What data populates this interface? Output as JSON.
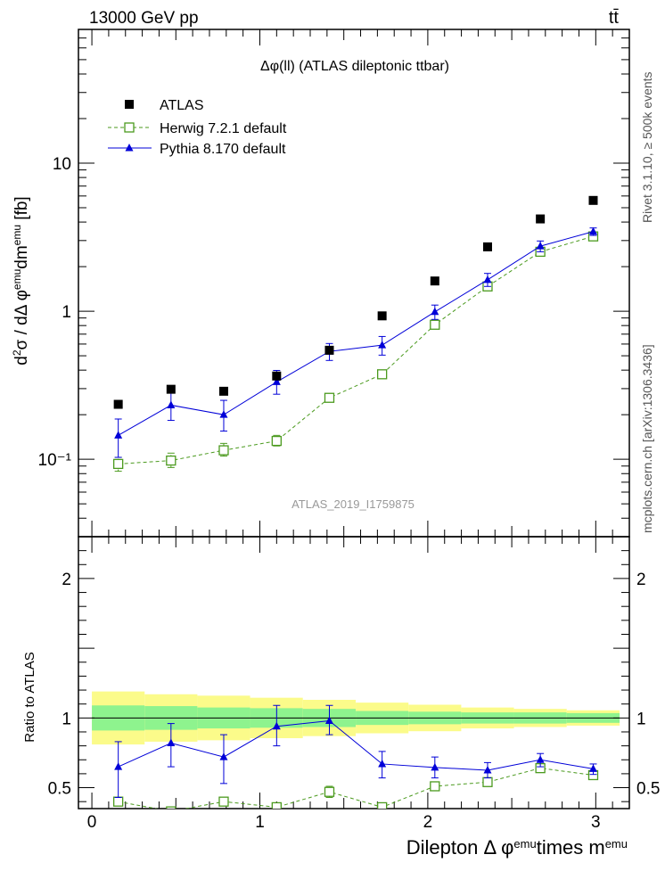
{
  "header": {
    "energy_label": "13000 GeV pp",
    "process_label": "tt̄"
  },
  "side_labels": {
    "rivet": "Rivet 3.1.10, ≥ 500k events",
    "mcplots": "mcplots.cern.ch [arXiv:1306.3436]"
  },
  "chart_data": [
    {
      "type": "scatter",
      "panel": "main",
      "title": "Δφ(ll) (ATLAS dileptonic ttbar)",
      "analysis_label": "ATLAS_2019_I1759875",
      "ylabel": "d²σ / dΔ φ^emu dm^emu [fb]",
      "xlabel": "",
      "yscale": "log",
      "xlim": [
        -0.08,
        3.2
      ],
      "ylim": [
        0.03,
        80
      ],
      "y_ticks": [
        {
          "value": 0.1,
          "label": "10⁻¹"
        },
        {
          "value": 1,
          "label": "1"
        },
        {
          "value": 10,
          "label": "10"
        }
      ],
      "x": [
        0.157,
        0.471,
        0.785,
        1.1,
        1.414,
        1.728,
        2.042,
        2.356,
        2.67,
        2.985
      ],
      "series": [
        {
          "name": "ATLAS",
          "color": "#000000",
          "marker": "filled-square",
          "values": [
            0.235,
            0.297,
            0.288,
            0.365,
            0.545,
            0.93,
            1.6,
            2.72,
            4.2,
            5.6
          ]
        },
        {
          "name": "Herwig 7.2.1 default",
          "color": "#4b9a1e",
          "marker": "open-square",
          "line": "dashed",
          "values": [
            0.093,
            0.098,
            0.115,
            0.133,
            0.26,
            0.375,
            0.81,
            1.47,
            2.52,
            3.2
          ],
          "err_low": [
            0.083,
            0.088,
            0.105,
            0.123,
            0.25,
            0.365,
            0.77,
            1.4,
            2.42,
            3.08
          ],
          "err_high": [
            0.103,
            0.11,
            0.128,
            0.145,
            0.272,
            0.39,
            0.86,
            1.55,
            2.65,
            3.34
          ]
        },
        {
          "name": "Pythia 8.170 default",
          "color": "#0000d8",
          "marker": "filled-triangle",
          "line": "solid",
          "values": [
            0.145,
            0.232,
            0.2,
            0.333,
            0.535,
            0.59,
            0.99,
            1.63,
            2.75,
            3.45
          ],
          "err_low": [
            0.103,
            0.183,
            0.155,
            0.275,
            0.465,
            0.505,
            0.88,
            1.47,
            2.52,
            3.25
          ],
          "err_high": [
            0.187,
            0.285,
            0.25,
            0.398,
            0.605,
            0.675,
            1.1,
            1.8,
            2.98,
            3.65
          ]
        }
      ],
      "legend_position": "top-left"
    },
    {
      "type": "line",
      "panel": "ratio",
      "ylabel": "Ratio to ATLAS",
      "xlabel": "Dilepton Δ φ^emu times m^emu",
      "xlim": [
        -0.08,
        3.2
      ],
      "ylim": [
        0.35,
        2.3
      ],
      "x_ticks": [
        0,
        1,
        2,
        3
      ],
      "y_ticks": [
        0.5,
        1,
        2
      ],
      "band_edges": [
        0,
        0.314,
        0.628,
        0.942,
        1.256,
        1.571,
        1.885,
        2.199,
        2.513,
        2.827,
        3.142
      ],
      "band_inner_low": [
        0.91,
        0.915,
        0.925,
        0.93,
        0.935,
        0.95,
        0.955,
        0.96,
        0.96,
        0.965
      ],
      "band_inner_high": [
        1.09,
        1.085,
        1.075,
        1.07,
        1.065,
        1.05,
        1.045,
        1.04,
        1.04,
        1.035
      ],
      "band_outer_low": [
        0.81,
        0.83,
        0.84,
        0.855,
        0.87,
        0.89,
        0.905,
        0.925,
        0.935,
        0.945
      ],
      "band_outer_high": [
        1.19,
        1.17,
        1.16,
        1.145,
        1.13,
        1.11,
        1.095,
        1.075,
        1.065,
        1.055
      ],
      "band_colors": {
        "inner": "#8ef38e",
        "outer": "#fbfb8a"
      },
      "x": [
        0.157,
        0.471,
        0.785,
        1.1,
        1.414,
        1.728,
        2.042,
        2.356,
        2.67,
        2.985
      ],
      "series": [
        {
          "name": "Herwig 7.2.1 default",
          "color": "#4b9a1e",
          "line": "dashed",
          "values": [
            0.4,
            0.33,
            0.4,
            0.36,
            0.47,
            0.36,
            0.51,
            0.54,
            0.64,
            0.59
          ],
          "err_low": [
            null,
            null,
            null,
            null,
            0.43,
            0.345,
            0.48,
            0.515,
            0.615,
            0.565
          ],
          "err_high": [
            null,
            null,
            null,
            null,
            0.51,
            0.375,
            0.54,
            0.565,
            0.665,
            0.615
          ]
        },
        {
          "name": "Pythia 8.170 default",
          "color": "#0000d8",
          "line": "solid",
          "values": [
            0.65,
            0.82,
            0.72,
            0.94,
            0.98,
            0.67,
            0.645,
            0.625,
            0.7,
            0.635
          ],
          "err_low": [
            0.43,
            0.65,
            0.53,
            0.8,
            0.88,
            0.57,
            0.57,
            0.57,
            0.65,
            0.595
          ],
          "err_high": [
            0.83,
            0.96,
            0.88,
            1.09,
            1.09,
            0.76,
            0.72,
            0.68,
            0.745,
            0.67
          ]
        }
      ]
    }
  ]
}
